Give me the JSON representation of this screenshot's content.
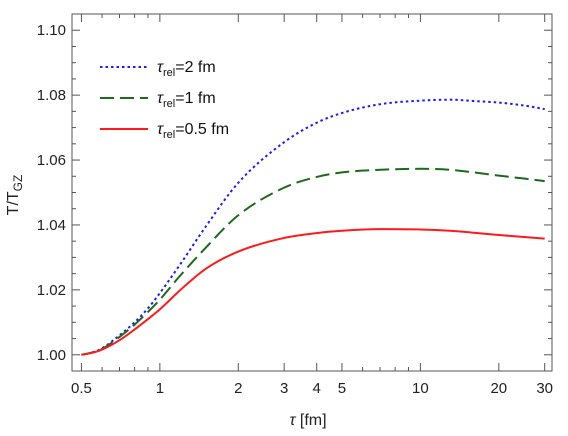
{
  "chart_data": {
    "type": "line",
    "x_scale": "log",
    "xlim": [
      0.46,
      32
    ],
    "ylim": [
      0.995,
      1.105
    ],
    "xlabel": {
      "symbol": "τ",
      "unit": " [fm]"
    },
    "ylabel": {
      "main": "T/T",
      "sub": "GZ"
    },
    "x_ticks": [
      {
        "value": 0.5,
        "label": "0.5"
      },
      {
        "value": 1,
        "label": "1"
      },
      {
        "value": 2,
        "label": "2"
      },
      {
        "value": 3,
        "label": "3"
      },
      {
        "value": 4,
        "label": "4"
      },
      {
        "value": 5,
        "label": "5"
      },
      {
        "value": 10,
        "label": "10"
      },
      {
        "value": 20,
        "label": "20"
      },
      {
        "value": 30,
        "label": "30"
      }
    ],
    "y_ticks": [
      {
        "value": 1.0,
        "label": "1.00"
      },
      {
        "value": 1.02,
        "label": "1.02"
      },
      {
        "value": 1.04,
        "label": "1.04"
      },
      {
        "value": 1.06,
        "label": "1.06"
      },
      {
        "value": 1.08,
        "label": "1.08"
      },
      {
        "value": 1.1,
        "label": "1.10"
      }
    ],
    "legend_position": "top-left",
    "series": [
      {
        "name": "τrel=2 fm",
        "label_symbol": "τ",
        "label_sub": "rel",
        "label_rest": "=2 fm",
        "color": "#1a1aff",
        "style": "dotted",
        "x": [
          0.5,
          0.55,
          0.6,
          0.7,
          0.8,
          0.9,
          1.0,
          1.2,
          1.5,
          2.0,
          3.0,
          4.0,
          5.0,
          7.0,
          10.0,
          13.0,
          16.0,
          20.0,
          25.0,
          30.0
        ],
        "y": [
          1.0,
          1.0007,
          1.002,
          1.006,
          1.01,
          1.0143,
          1.019,
          1.028,
          1.0395,
          1.053,
          1.0655,
          1.0715,
          1.0745,
          1.0772,
          1.0783,
          1.0786,
          1.0782,
          1.0777,
          1.0768,
          1.0757
        ]
      },
      {
        "name": "τrel=1 fm",
        "label_symbol": "τ",
        "label_sub": "rel",
        "label_rest": "=1 fm",
        "color": "#1a6b1a",
        "style": "dashed",
        "x": [
          0.5,
          0.55,
          0.6,
          0.7,
          0.8,
          0.9,
          1.0,
          1.2,
          1.5,
          2.0,
          3.0,
          4.0,
          5.0,
          7.0,
          10.0,
          13.0,
          16.0,
          20.0,
          25.0,
          30.0
        ],
        "y": [
          1.0,
          1.0007,
          1.0018,
          1.0055,
          1.0093,
          1.0132,
          1.017,
          1.0245,
          1.033,
          1.043,
          1.0515,
          1.0548,
          1.0562,
          1.057,
          1.0573,
          1.057,
          1.0562,
          1.0552,
          1.0543,
          1.0535
        ]
      },
      {
        "name": "τrel=0.5 fm",
        "label_symbol": "τ",
        "label_sub": "rel",
        "label_rest": "=0.5 fm",
        "color": "#ff1a1a",
        "style": "solid",
        "x": [
          0.5,
          0.55,
          0.6,
          0.7,
          0.8,
          0.9,
          1.0,
          1.2,
          1.5,
          2.0,
          3.0,
          4.0,
          5.0,
          7.0,
          10.0,
          13.0,
          16.0,
          20.0,
          25.0,
          30.0
        ],
        "y": [
          1.0,
          1.0006,
          1.0016,
          1.0045,
          1.0078,
          1.011,
          1.014,
          1.02,
          1.0265,
          1.0318,
          1.036,
          1.0375,
          1.0382,
          1.0387,
          1.0386,
          1.0382,
          1.0376,
          1.0369,
          1.0363,
          1.0358
        ]
      }
    ]
  }
}
